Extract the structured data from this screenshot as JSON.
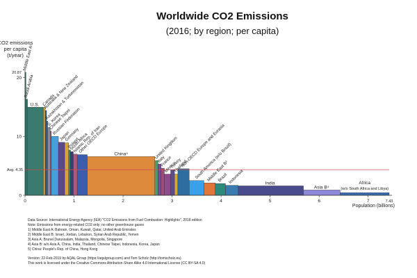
{
  "chart_data": {
    "type": "bar",
    "variant": "variable-width",
    "title": "Worldwide CO2 Emissions",
    "subtitle": "(2016; by region; per capita)",
    "ylabel": [
      "CO2 emissions",
      "per capita",
      "(t/year)"
    ],
    "xlabel": "Population (billions)",
    "xlim": [
      0,
      7.43
    ],
    "ylim": [
      0,
      21
    ],
    "yticks": [
      0,
      10,
      20
    ],
    "ytick_labels": [
      "0",
      "10",
      "20"
    ],
    "y_max_label": "20.87",
    "xticks": [
      0,
      1,
      2,
      3,
      4,
      5,
      6,
      7
    ],
    "xtick_labels": [
      "0",
      "1",
      "2",
      "3",
      "4",
      "5",
      "6",
      "7"
    ],
    "x_end_label": "7.43",
    "average": {
      "value": 4.35,
      "label": "Avg. 4.35"
    },
    "bars": [
      {
        "name": "Middle East A¹",
        "x0": 0.0,
        "x1": 0.02,
        "value": 20.87,
        "color": "#3f7f6f"
      },
      {
        "name": "Saudi Arabia",
        "x0": 0.02,
        "x1": 0.052,
        "value": 16.3,
        "color": "#3a7b70"
      },
      {
        "name": "U.S.",
        "x0": 0.052,
        "x1": 0.375,
        "value": 14.95,
        "color": "#3a7b70"
      },
      {
        "name": "Canada",
        "x0": 0.375,
        "x1": 0.411,
        "value": 14.9,
        "color": "#e6a43a"
      },
      {
        "name": "Australia & New Zealand",
        "x0": 0.411,
        "x1": 0.44,
        "value": 14.4,
        "color": "#2e5d8f"
      },
      {
        "name": "Kazakhstan & Turkmenistan",
        "x0": 0.44,
        "x1": 0.463,
        "value": 12.6,
        "color": "#556e93"
      },
      {
        "name": "S. Korea",
        "x0": 0.463,
        "x1": 0.514,
        "value": 11.5,
        "color": "#8c8c8c"
      },
      {
        "name": "Chinese Taipei",
        "x0": 0.514,
        "x1": 0.538,
        "value": 10.9,
        "color": "#b05878"
      },
      {
        "name": "Russian Federation",
        "x0": 0.538,
        "x1": 0.682,
        "value": 10.0,
        "color": "#4a9ee0"
      },
      {
        "name": "Japan",
        "x0": 0.682,
        "x1": 0.809,
        "value": 9.0,
        "color": "#5b4a8b"
      },
      {
        "name": "Germany",
        "x0": 0.809,
        "x1": 0.891,
        "value": 8.9,
        "color": "#d4a53a"
      },
      {
        "name": "Poland",
        "x0": 0.891,
        "x1": 0.929,
        "value": 7.7,
        "color": "#3a7b6b"
      },
      {
        "name": "South Africa",
        "x0": 0.929,
        "x1": 0.985,
        "value": 7.4,
        "color": "#3a3f74"
      },
      {
        "name": "Islamic Rep. of Iran",
        "x0": 0.985,
        "x1": 1.065,
        "value": 7.0,
        "color": "#b05878"
      },
      {
        "name": "Other OECD Europe",
        "x0": 1.065,
        "x1": 1.27,
        "value": 6.9,
        "color": "#3a5db0"
      },
      {
        "name": "China⁵",
        "x0": 1.27,
        "x1": 2.649,
        "value": 6.57,
        "color": "#de8a3d"
      },
      {
        "name": "United Kingdom",
        "x0": 2.649,
        "x1": 2.715,
        "value": 5.9,
        "color": "#4e9b6b"
      },
      {
        "name": "Italy",
        "x0": 2.715,
        "x1": 2.776,
        "value": 5.3,
        "color": "#7a4e9b"
      },
      {
        "name": "France",
        "x0": 2.776,
        "x1": 2.843,
        "value": 4.6,
        "color": "#9b4e7a"
      },
      {
        "name": "Mexico",
        "x0": 2.843,
        "x1": 2.971,
        "value": 3.6,
        "color": "#8e4a8e"
      },
      {
        "name": "Turkey",
        "x0": 2.971,
        "x1": 3.05,
        "value": 4.3,
        "color": "#5b4e8b"
      },
      {
        "name": "Thailand",
        "x0": 3.05,
        "x1": 3.118,
        "value": 3.6,
        "color": "#d4a53a"
      },
      {
        "name": "Non-OECD Europe and Eurasia",
        "x0": 3.118,
        "x1": 3.35,
        "value": 4.5,
        "color": "#2e6da0"
      },
      {
        "name": "South America (w/o Brazil)",
        "x0": 3.35,
        "x1": 3.65,
        "value": 2.5,
        "color": "#3aa0e8"
      },
      {
        "name": "Middle East B²",
        "x0": 3.65,
        "x1": 3.88,
        "value": 2.1,
        "color": "#e0773a"
      },
      {
        "name": "Brazil",
        "x0": 3.88,
        "x1": 4.09,
        "value": 2.0,
        "color": "#2e8a7a"
      },
      {
        "name": "Indonesia",
        "x0": 4.09,
        "x1": 4.35,
        "value": 1.7,
        "color": "#3a7bb0"
      },
      {
        "name": "India",
        "x0": 4.35,
        "x1": 5.68,
        "value": 1.6,
        "color": "#4a4a8e"
      },
      {
        "name": "Asia B⁴",
        "x0": 5.68,
        "x1": 6.43,
        "value": 0.9,
        "color": "#8e88d8"
      },
      {
        "name": "Africa (w/o South Africa and Libya)",
        "x0": 6.43,
        "x1": 7.43,
        "value": 0.45,
        "color": "#3a6db0"
      }
    ],
    "labels": [
      {
        "text": "Middle East A¹",
        "x": 0.01,
        "y": 20.87,
        "rot": -75
      },
      {
        "text": "Saudi Arabia",
        "x": 0.036,
        "y": 16.3,
        "rot": -75
      },
      {
        "text": "U.S.",
        "x": 0.2,
        "y": 14.95,
        "rot": 0
      },
      {
        "text": "Canada",
        "x": 0.39,
        "y": 14.9,
        "rot": -45
      },
      {
        "text": "Australia & New Zealand",
        "x": 0.42,
        "y": 14.4,
        "rot": -45
      },
      {
        "text": "Kazakhstan & Turkmenistan",
        "x": 0.45,
        "y": 12.6,
        "rot": -45
      },
      {
        "text": "S. Korea",
        "x": 0.49,
        "y": 11.5,
        "rot": -45
      },
      {
        "text": "Chinese Taipei",
        "x": 0.53,
        "y": 10.9,
        "rot": -45
      },
      {
        "text": "Russian Federation",
        "x": 0.6,
        "y": 10.0,
        "rot": -45
      },
      {
        "text": "Japan",
        "x": 0.74,
        "y": 9.0,
        "rot": -45
      },
      {
        "text": "Germany",
        "x": 0.85,
        "y": 8.9,
        "rot": -45
      },
      {
        "text": "Poland",
        "x": 0.91,
        "y": 7.7,
        "rot": -45
      },
      {
        "text": "South Africa",
        "x": 0.95,
        "y": 7.4,
        "rot": -45
      },
      {
        "text": "Islamic Rep. of Iran",
        "x": 1.02,
        "y": 7.0,
        "rot": -45
      },
      {
        "text": "Other OECD Europe",
        "x": 1.13,
        "y": 6.9,
        "rot": -45
      },
      {
        "text": "China⁵",
        "x": 1.96,
        "y": 6.57,
        "rot": 0
      },
      {
        "text": "United Kingdom",
        "x": 2.68,
        "y": 5.9,
        "rot": -45
      },
      {
        "text": "Italy",
        "x": 2.74,
        "y": 5.3,
        "rot": -45
      },
      {
        "text": "France",
        "x": 2.8,
        "y": 4.6,
        "rot": -45
      },
      {
        "text": "Mexico",
        "x": 2.88,
        "y": 3.6,
        "rot": -45
      },
      {
        "text": "Turkey",
        "x": 3.0,
        "y": 4.3,
        "rot": -45
      },
      {
        "text": "Thailand",
        "x": 3.07,
        "y": 3.6,
        "rot": -45
      },
      {
        "text": "Non-OECD Europe and Eurasia",
        "x": 3.22,
        "y": 4.5,
        "rot": -45
      },
      {
        "text": "South America (w/o Brazil)",
        "x": 3.5,
        "y": 2.5,
        "rot": -45
      },
      {
        "text": "Middle East B²",
        "x": 3.75,
        "y": 2.1,
        "rot": -45
      },
      {
        "text": "Brazil",
        "x": 3.97,
        "y": 2.0,
        "rot": -45
      },
      {
        "text": "Indonesia",
        "x": 4.19,
        "y": 1.7,
        "rot": -45
      },
      {
        "text": "India",
        "x": 5.0,
        "y": 1.6,
        "rot": 0
      },
      {
        "text": "Asia B⁴",
        "x": 6.05,
        "y": 0.9,
        "rot": 0
      }
    ],
    "africa_label": {
      "line1": "Africa",
      "line2": "(w/o South Africa and Libya)",
      "x": 6.93,
      "y": 0.45
    }
  },
  "source_notes": [
    "Data Source: International Energy Agency (IEA) \"CO2 Emissions from Fuel Combustion: Highlights\", 2018 edition",
    "Note: Emissions from energy-related CO2 only; no other greenhouse gases",
    "1) Middle East A: Bahrain, Oman, Kuwait, Qatar, United Arab Emirates",
    "2) Middle East B: Israel, Jordan, Lebanon, Syrian Arab Republic, Yemen",
    "3) Asia A: Brunei Darussalam, Malaysia, Mongolia, Singapore",
    "4) Asia B: w/o Asia A, China, India, Thailand, Chinese Taipei, Indonesia, Korea, Japan",
    "5) China: People's Rep. of China, Hong Kong"
  ],
  "credits": [
    "Version: 22-Feb-2019 by AQAL Group (https://aqalgroup.com) and Tom Scholz (http://tomscholz.eu)",
    "This work is licensed under the Creative Commons Attribution-Share Alike 4.0 International License (CC BY-SA 4.0)"
  ]
}
